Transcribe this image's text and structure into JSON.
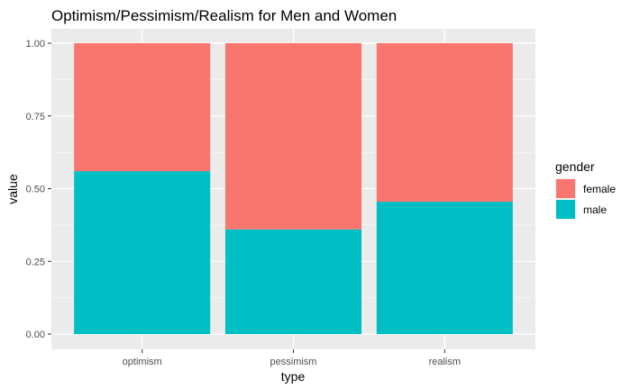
{
  "chart_data": {
    "type": "bar",
    "stacked": true,
    "title": "Optimism/Pessimism/Realism for Men and Women",
    "xlabel": "type",
    "ylabel": "value",
    "categories": [
      "optimism",
      "pessimism",
      "realism"
    ],
    "ylim": [
      0,
      1
    ],
    "yticks": [
      "0.00",
      "0.25",
      "0.50",
      "0.75",
      "1.00"
    ],
    "grid": true,
    "legend": {
      "title": "gender",
      "position": "right"
    },
    "series": [
      {
        "name": "male",
        "color": "#00BFC4",
        "values": [
          0.56,
          0.36,
          0.455
        ]
      },
      {
        "name": "female",
        "color": "#F8766D",
        "values": [
          0.44,
          0.64,
          0.545
        ]
      }
    ]
  }
}
